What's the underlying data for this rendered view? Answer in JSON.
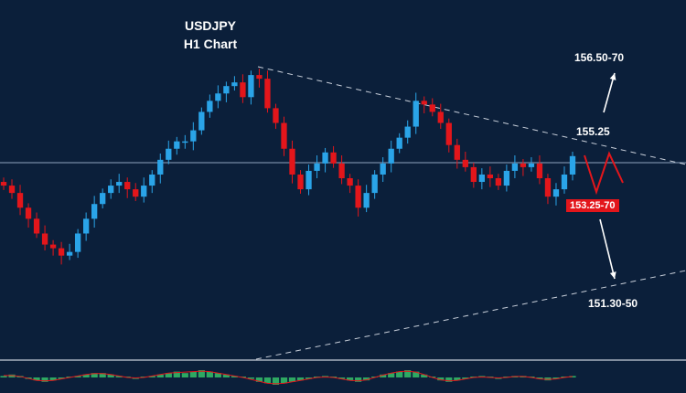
{
  "chart_data": {
    "type": "candlestick",
    "title": "USDJPY",
    "subtitle": "H1 Chart",
    "levels": {
      "upper_target": "156.50-70",
      "resistance": "155.25",
      "support": "153.25-70",
      "lower_target": "151.30-50"
    },
    "series": [
      {
        "name": "",
        "values": [
          153.9,
          153.7,
          153.3,
          153.0,
          152.6,
          152.3,
          152.2,
          152.0,
          152.1,
          152.6,
          153.0,
          153.4,
          153.7,
          153.9,
          154.0,
          153.8,
          153.6,
          153.9,
          154.2,
          154.6,
          154.9,
          155.1,
          155.1,
          155.4,
          155.9,
          156.2,
          156.4,
          156.6,
          156.7,
          156.3,
          156.9,
          156.8,
          156.0,
          155.6,
          154.9,
          154.2,
          153.8,
          154.3,
          154.5,
          154.8,
          154.5,
          154.1,
          153.9,
          153.3,
          153.7,
          154.2,
          154.5,
          154.9,
          155.2,
          155.5,
          156.2,
          156.1,
          155.9,
          155.6,
          155.0,
          154.6,
          154.4,
          154.0,
          154.2,
          154.1,
          153.9,
          154.3,
          154.5,
          154.4,
          154.5,
          154.1,
          153.6,
          153.8,
          154.2,
          154.7
        ]
      },
      {
        "name": "",
        "values": [
          0.1,
          0.2,
          0.1,
          -0.1,
          -0.2,
          -0.3,
          -0.2,
          -0.1,
          0.0,
          0.1,
          0.2,
          0.3,
          0.3,
          0.2,
          0.1,
          0.0,
          -0.1,
          0.0,
          0.1,
          0.2,
          0.3,
          0.4,
          0.3,
          0.4,
          0.5,
          0.4,
          0.3,
          0.2,
          0.1,
          0.0,
          -0.1,
          -0.3,
          -0.4,
          -0.5,
          -0.4,
          -0.3,
          -0.2,
          -0.1,
          0.0,
          0.1,
          0.0,
          -0.1,
          -0.2,
          -0.3,
          -0.2,
          0.0,
          0.2,
          0.3,
          0.4,
          0.5,
          0.4,
          0.2,
          0.0,
          -0.2,
          -0.3,
          -0.2,
          -0.1,
          0.0,
          0.1,
          0.0,
          -0.1,
          0.0,
          0.1,
          0.1,
          0.0,
          -0.1,
          -0.2,
          -0.1,
          0.0,
          0.1
        ]
      }
    ],
    "grid": false,
    "colors": {
      "background": "#0b1f3a",
      "up": "#2aa4e8",
      "down": "#e3161b",
      "histogram": "#2ea862",
      "trendline": "#c8cfda"
    }
  }
}
